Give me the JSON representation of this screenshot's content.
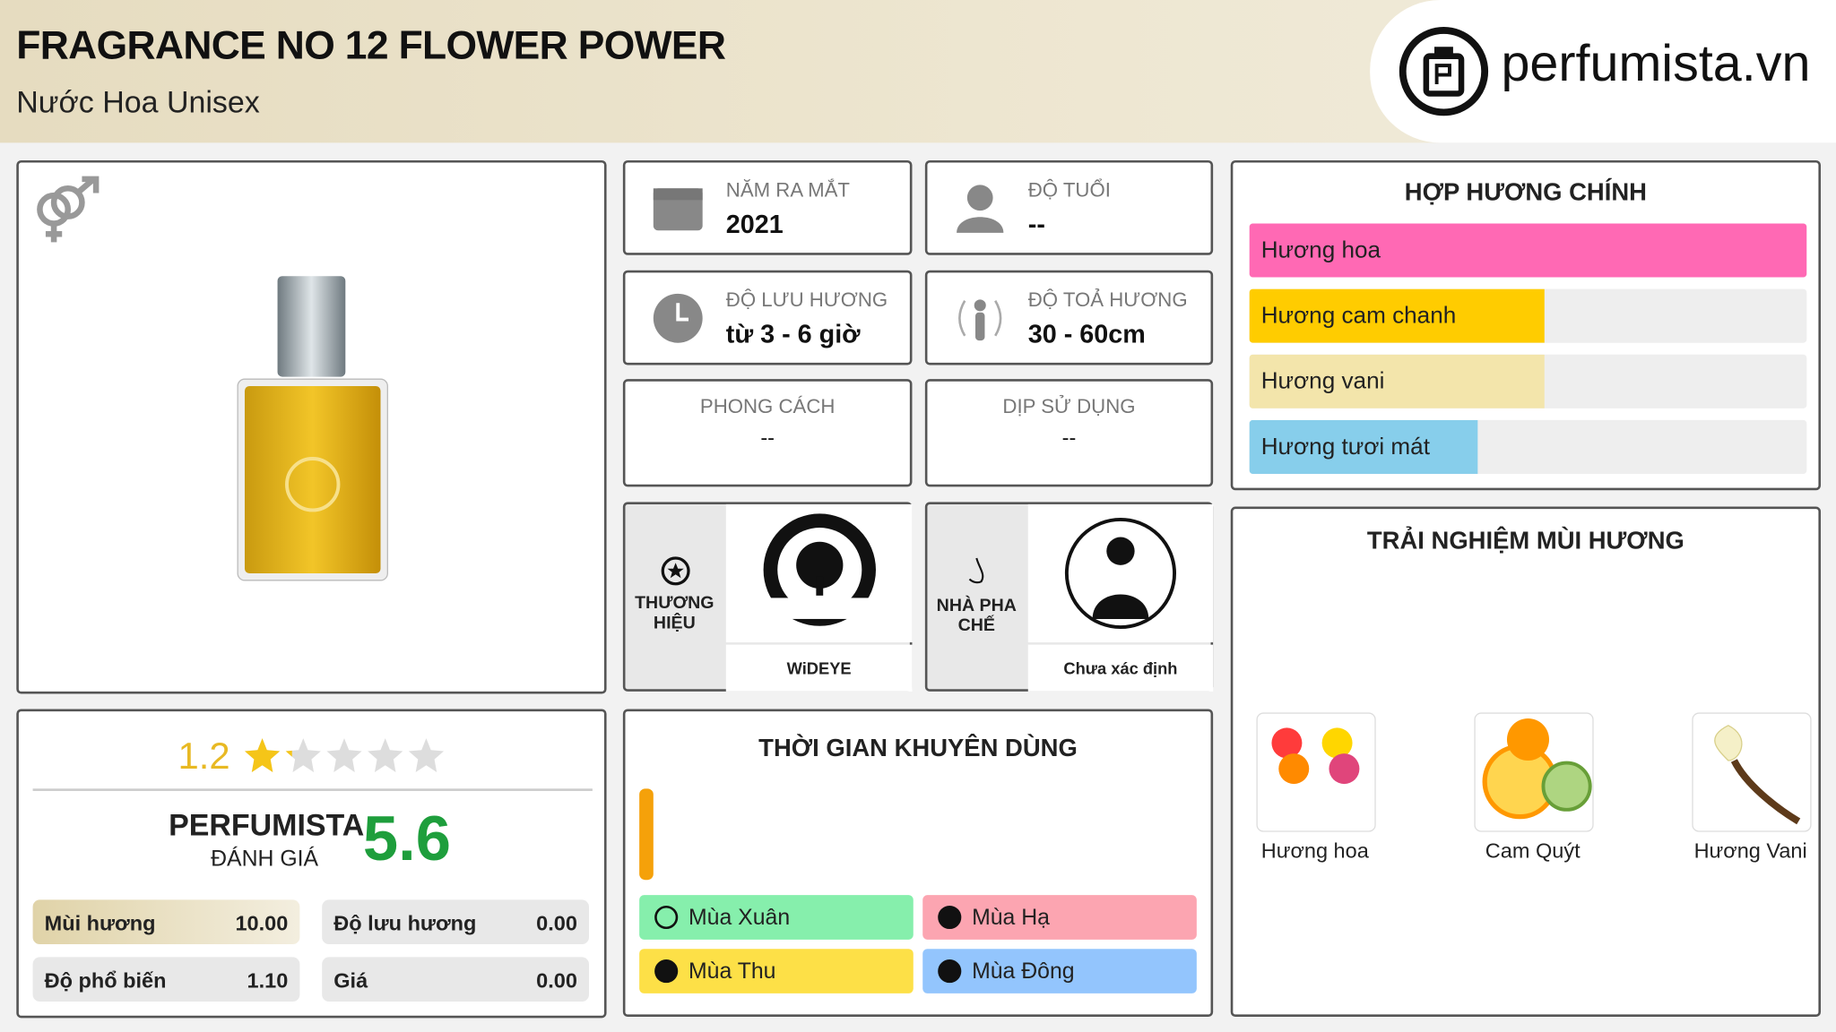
{
  "header": {
    "title": "FRAGRANCE NO 12 FLOWER POWER",
    "subtitle": "Nước Hoa Unisex",
    "logo": "perfumista.vn"
  },
  "info": [
    {
      "label": "NĂM RA MẮT",
      "value": "2021"
    },
    {
      "label": "ĐỘ TUỔI",
      "value": "--"
    },
    {
      "label": "ĐỘ LƯU HƯƠNG",
      "value": "từ 3 - 6 giờ"
    },
    {
      "label": "ĐỘ TOẢ HƯƠNG",
      "value": "30 - 60cm"
    },
    {
      "label": "PHONG CÁCH",
      "value": "--"
    },
    {
      "label": "DỊP SỬ DỤNG",
      "value": "--"
    }
  ],
  "brand": {
    "label": "THƯƠNG HIỆU",
    "name": "WiDEYE"
  },
  "perfumer": {
    "label": "NHÀ PHA CHẾ",
    "name": "Chưa xác định"
  },
  "accords": {
    "title": "HỢP HƯƠNG CHÍNH",
    "items": [
      {
        "name": "Hương hoa",
        "value": 100,
        "color": "#ff69b4"
      },
      {
        "name": "Hương cam chanh",
        "value": 53,
        "color": "#ffcc00"
      },
      {
        "name": "Hương vani",
        "value": 53,
        "color": "#f3e5ab"
      },
      {
        "name": "Hương tươi mát",
        "value": 41,
        "color": "#87ceeb"
      }
    ]
  },
  "experience": {
    "title": "TRẢI NGHIỆM MÙI HƯƠNG",
    "items": [
      "Hương hoa",
      "Cam Quýt",
      "Hương Vani"
    ]
  },
  "rating": {
    "stars": 1.2,
    "brand": "PERFUMISTA",
    "label": "ĐÁNH GIÁ",
    "score": 5.6,
    "metrics": [
      {
        "name": "Mùi hương",
        "value": "10.00"
      },
      {
        "name": "Độ lưu hương",
        "value": "0.00"
      },
      {
        "name": "Độ phổ biến",
        "value": "1.10"
      },
      {
        "name": "Giá",
        "value": "0.00"
      }
    ]
  },
  "season": {
    "title": "THỜI GIAN KHUYÊN DÙNG",
    "items": [
      {
        "name": "Mùa Xuân",
        "color": "#86efac"
      },
      {
        "name": "Mùa Hạ",
        "color": "#fca5b1"
      },
      {
        "name": "Mùa Thu",
        "color": "#fde047"
      },
      {
        "name": "Mùa Đông",
        "color": "#93c5fd"
      }
    ]
  }
}
